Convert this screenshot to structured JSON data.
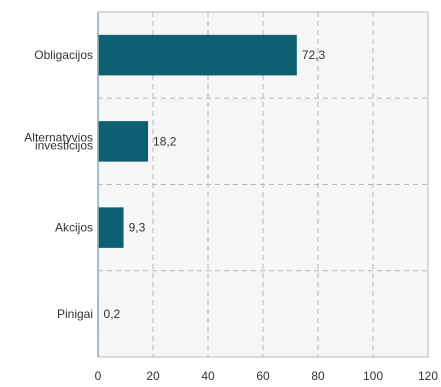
{
  "colors": {
    "bar": "#0e5f72",
    "plot_background": "#f6f6f6",
    "grid": "#b8b8b8",
    "axis": "#8fa8c0",
    "text": "#333333"
  },
  "chart_data": {
    "type": "bar",
    "orientation": "horizontal",
    "title": "",
    "xlabel": "",
    "ylabel": "",
    "xlim": [
      0,
      120
    ],
    "x_ticks": [
      0,
      20,
      40,
      60,
      80,
      100,
      120
    ],
    "grid": true,
    "legend": "none",
    "categories": [
      [
        "Obligacijos"
      ],
      [
        "Alternatyvios",
        "investicijos"
      ],
      [
        "Akcijos"
      ],
      [
        "Pinigai"
      ]
    ],
    "values": [
      72.3,
      18.2,
      9.3,
      0.2
    ],
    "value_labels": [
      "72,3",
      "18,2",
      "9,3",
      "0,2"
    ]
  }
}
